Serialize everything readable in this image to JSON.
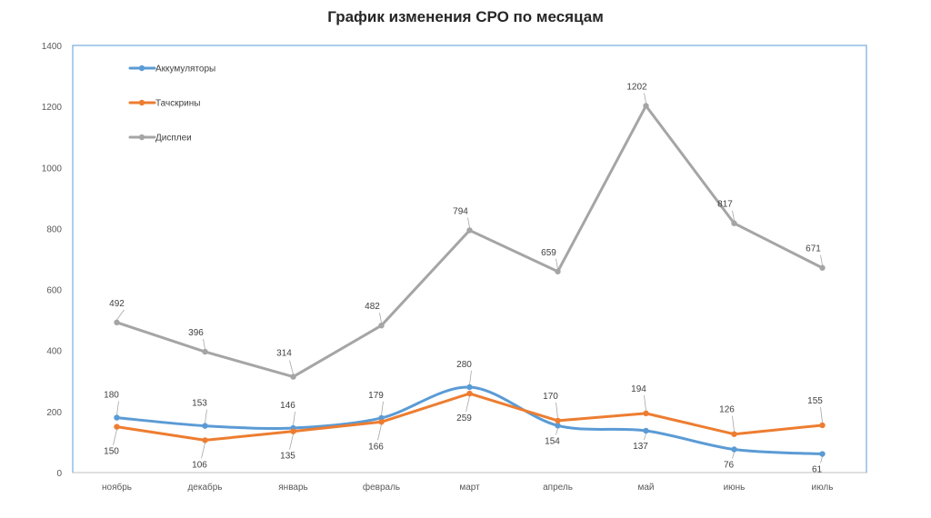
{
  "chart_data": {
    "type": "line",
    "title": "График изменения СРО по месяцам",
    "xlabel": "",
    "ylabel": "",
    "ylim": [
      0,
      1400
    ],
    "yticks": [
      0,
      200,
      400,
      600,
      800,
      1000,
      1200,
      1400
    ],
    "categories": [
      "ноябрь",
      "декабрь",
      "январь",
      "февраль",
      "март",
      "апрель",
      "май",
      "июнь",
      "июль"
    ],
    "legend_position": "top-left",
    "grid": false,
    "series": [
      {
        "name": "Аккумуляторы",
        "color": "#5b9bd5",
        "smooth": true,
        "values": [
          180,
          153,
          146,
          179,
          280,
          154,
          137,
          76,
          61
        ]
      },
      {
        "name": "Тачскрины",
        "color": "#ed7d31",
        "smooth": false,
        "values": [
          150,
          106,
          135,
          166,
          259,
          170,
          194,
          126,
          155
        ]
      },
      {
        "name": "Дисплеи",
        "color": "#a5a5a5",
        "smooth": false,
        "values": [
          492,
          396,
          314,
          482,
          794,
          659,
          1202,
          817,
          671
        ]
      }
    ]
  }
}
